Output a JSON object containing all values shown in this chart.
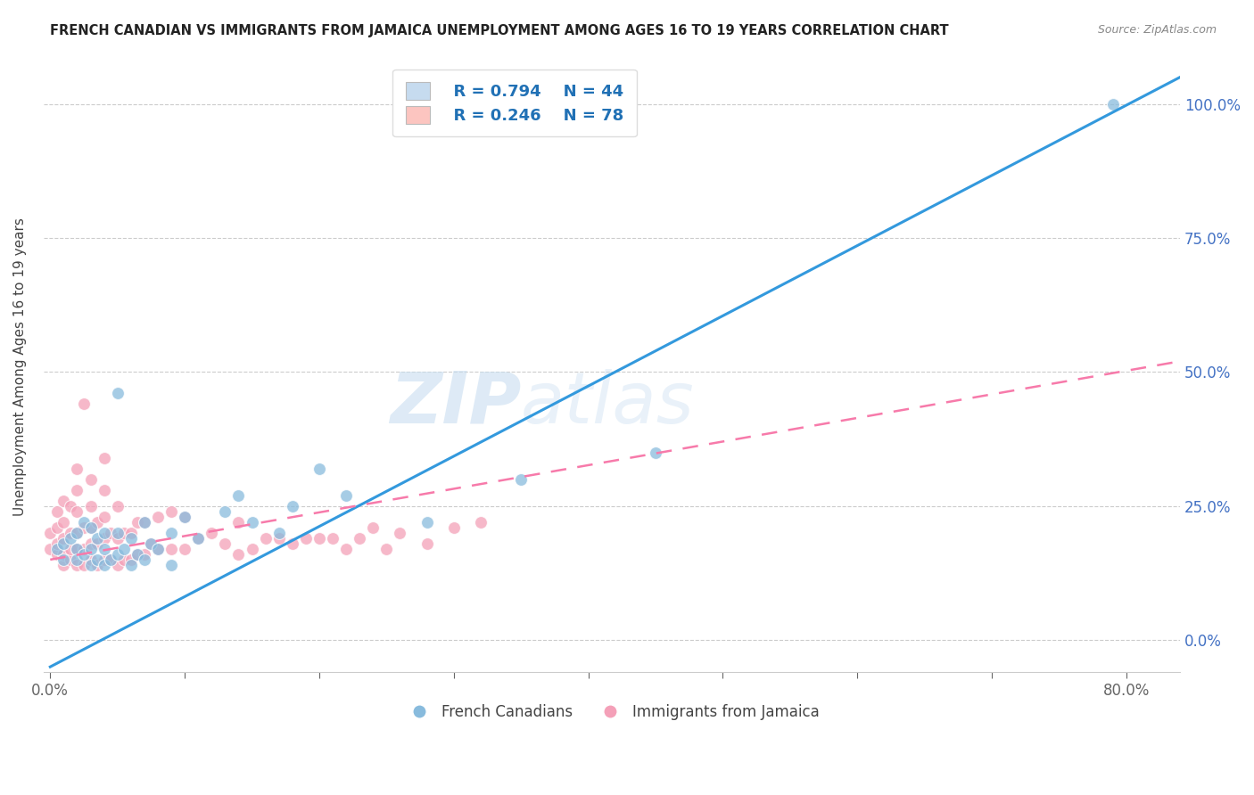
{
  "title": "FRENCH CANADIAN VS IMMIGRANTS FROM JAMAICA UNEMPLOYMENT AMONG AGES 16 TO 19 YEARS CORRELATION CHART",
  "source": "Source: ZipAtlas.com",
  "ylabel": "Unemployment Among Ages 16 to 19 years",
  "xlim": [
    -0.005,
    0.84
  ],
  "ylim": [
    -0.06,
    1.08
  ],
  "blue_color": "#88bbdd",
  "pink_color": "#f4a0b8",
  "blue_line_color": "#3399dd",
  "pink_line_color": "#f77aaa",
  "blue_fill_color": "#c6dbef",
  "pink_fill_color": "#fcc5c0",
  "legend_R_blue": "R = 0.794",
  "legend_N_blue": "N = 44",
  "legend_R_pink": "R = 0.246",
  "legend_N_pink": "N = 78",
  "watermark": "ZIPatlas",
  "blue_line_x0": 0.0,
  "blue_line_y0": -0.05,
  "blue_line_x1": 0.84,
  "blue_line_y1": 1.05,
  "pink_line_x0": 0.0,
  "pink_line_y0": 0.15,
  "pink_line_x1": 0.84,
  "pink_line_y1": 0.52,
  "blue_points_x": [
    0.005,
    0.01,
    0.01,
    0.015,
    0.02,
    0.02,
    0.02,
    0.025,
    0.025,
    0.03,
    0.03,
    0.03,
    0.035,
    0.035,
    0.04,
    0.04,
    0.04,
    0.045,
    0.05,
    0.05,
    0.05,
    0.055,
    0.06,
    0.06,
    0.065,
    0.07,
    0.07,
    0.075,
    0.08,
    0.09,
    0.09,
    0.1,
    0.11,
    0.13,
    0.14,
    0.15,
    0.17,
    0.18,
    0.2,
    0.22,
    0.28,
    0.35,
    0.45,
    0.79
  ],
  "blue_points_y": [
    0.17,
    0.18,
    0.15,
    0.19,
    0.17,
    0.2,
    0.15,
    0.16,
    0.22,
    0.14,
    0.17,
    0.21,
    0.15,
    0.19,
    0.14,
    0.17,
    0.2,
    0.15,
    0.46,
    0.16,
    0.2,
    0.17,
    0.14,
    0.19,
    0.16,
    0.15,
    0.22,
    0.18,
    0.17,
    0.14,
    0.2,
    0.23,
    0.19,
    0.24,
    0.27,
    0.22,
    0.2,
    0.25,
    0.32,
    0.27,
    0.22,
    0.3,
    0.35,
    1.0
  ],
  "pink_points_x": [
    0.0,
    0.0,
    0.005,
    0.005,
    0.005,
    0.005,
    0.01,
    0.01,
    0.01,
    0.01,
    0.01,
    0.015,
    0.015,
    0.015,
    0.015,
    0.02,
    0.02,
    0.02,
    0.02,
    0.02,
    0.02,
    0.025,
    0.025,
    0.025,
    0.025,
    0.03,
    0.03,
    0.03,
    0.03,
    0.03,
    0.035,
    0.035,
    0.035,
    0.04,
    0.04,
    0.04,
    0.04,
    0.04,
    0.045,
    0.045,
    0.05,
    0.05,
    0.05,
    0.055,
    0.055,
    0.06,
    0.06,
    0.065,
    0.065,
    0.07,
    0.07,
    0.075,
    0.08,
    0.08,
    0.09,
    0.09,
    0.1,
    0.1,
    0.11,
    0.12,
    0.13,
    0.14,
    0.14,
    0.15,
    0.16,
    0.17,
    0.18,
    0.19,
    0.2,
    0.21,
    0.22,
    0.23,
    0.24,
    0.25,
    0.26,
    0.28,
    0.3,
    0.32
  ],
  "pink_points_y": [
    0.17,
    0.2,
    0.16,
    0.18,
    0.21,
    0.24,
    0.14,
    0.16,
    0.19,
    0.22,
    0.26,
    0.15,
    0.17,
    0.2,
    0.25,
    0.14,
    0.17,
    0.2,
    0.24,
    0.28,
    0.32,
    0.14,
    0.17,
    0.21,
    0.44,
    0.15,
    0.18,
    0.21,
    0.25,
    0.3,
    0.14,
    0.18,
    0.22,
    0.15,
    0.19,
    0.23,
    0.28,
    0.34,
    0.15,
    0.2,
    0.14,
    0.19,
    0.25,
    0.15,
    0.2,
    0.15,
    0.2,
    0.16,
    0.22,
    0.16,
    0.22,
    0.18,
    0.17,
    0.23,
    0.17,
    0.24,
    0.17,
    0.23,
    0.19,
    0.2,
    0.18,
    0.16,
    0.22,
    0.17,
    0.19,
    0.19,
    0.18,
    0.19,
    0.19,
    0.19,
    0.17,
    0.19,
    0.21,
    0.17,
    0.2,
    0.18,
    0.21,
    0.22
  ]
}
